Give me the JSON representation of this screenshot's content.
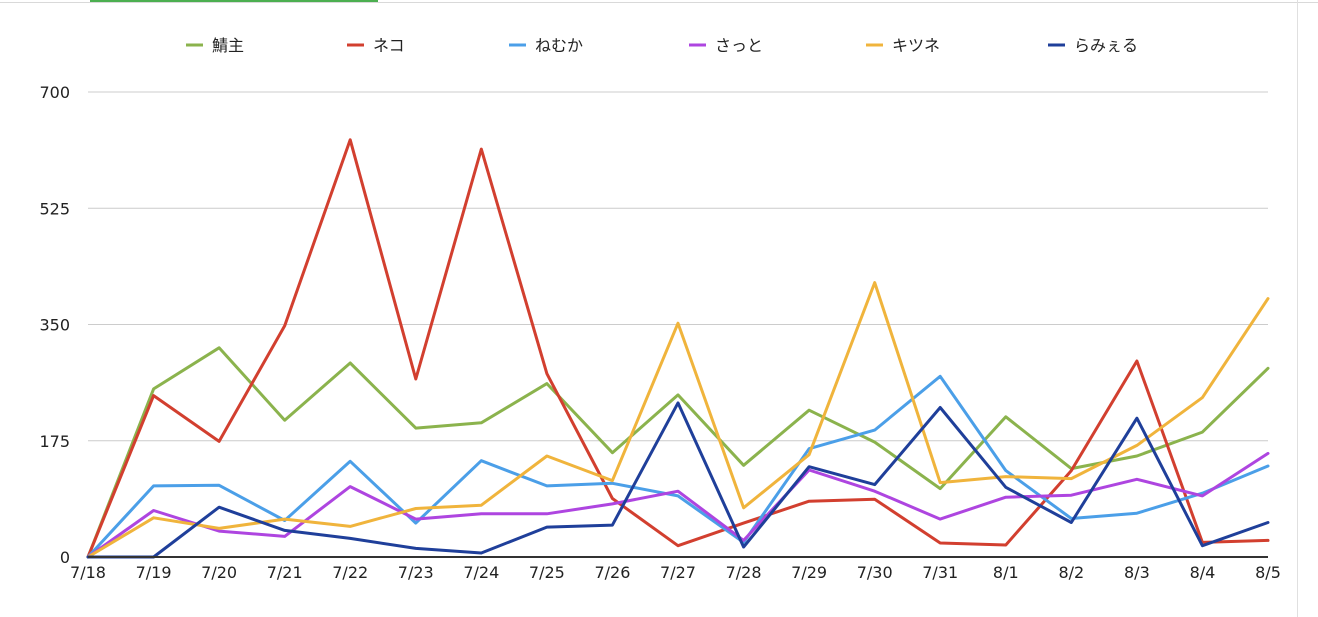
{
  "chart_data": {
    "type": "line",
    "title": "",
    "xlabel": "",
    "ylabel": "",
    "categories": [
      "7/18",
      "7/19",
      "7/20",
      "7/21",
      "7/22",
      "7/23",
      "7/24",
      "7/25",
      "7/26",
      "7/27",
      "7/28",
      "7/29",
      "7/30",
      "7/31",
      "8/1",
      "8/2",
      "8/3",
      "8/4",
      "8/5"
    ],
    "ylim": [
      0,
      700
    ],
    "yticks": [
      "0",
      "175",
      "350",
      "525",
      "700"
    ],
    "grid": true,
    "legend_position": "top",
    "series": [
      {
        "name": "鯖主",
        "color": "#8bb34d",
        "values": [
          0,
          253,
          315,
          206,
          292,
          194,
          202,
          261,
          157,
          244,
          138,
          221,
          173,
          103,
          211,
          133,
          152,
          188,
          284
        ]
      },
      {
        "name": "ネコ",
        "color": "#d23f2f",
        "values": [
          0,
          243,
          174,
          348,
          628,
          268,
          614,
          276,
          88,
          17,
          51,
          84,
          87,
          21,
          18,
          130,
          295,
          22,
          25
        ]
      },
      {
        "name": "ねむか",
        "color": "#4b9fe8",
        "values": [
          0,
          107,
          108,
          55,
          144,
          51,
          145,
          107,
          111,
          92,
          22,
          163,
          191,
          272,
          130,
          58,
          66,
          96,
          137
        ]
      },
      {
        "name": "さっと",
        "color": "#ae45e0",
        "values": [
          0,
          70,
          39,
          31,
          106,
          57,
          65,
          65,
          80,
          99,
          25,
          131,
          99,
          57,
          90,
          93,
          117,
          92,
          156
        ]
      },
      {
        "name": "キツネ",
        "color": "#f0b43c",
        "values": [
          0,
          59,
          43,
          57,
          46,
          73,
          78,
          152,
          115,
          352,
          74,
          154,
          413,
          112,
          121,
          118,
          168,
          240,
          389
        ]
      },
      {
        "name": "らみぇる",
        "color": "#1f3f9a",
        "values": [
          0,
          0,
          75,
          40,
          28,
          13,
          6,
          45,
          48,
          232,
          15,
          136,
          109,
          225,
          105,
          52,
          209,
          17,
          52
        ]
      }
    ]
  }
}
